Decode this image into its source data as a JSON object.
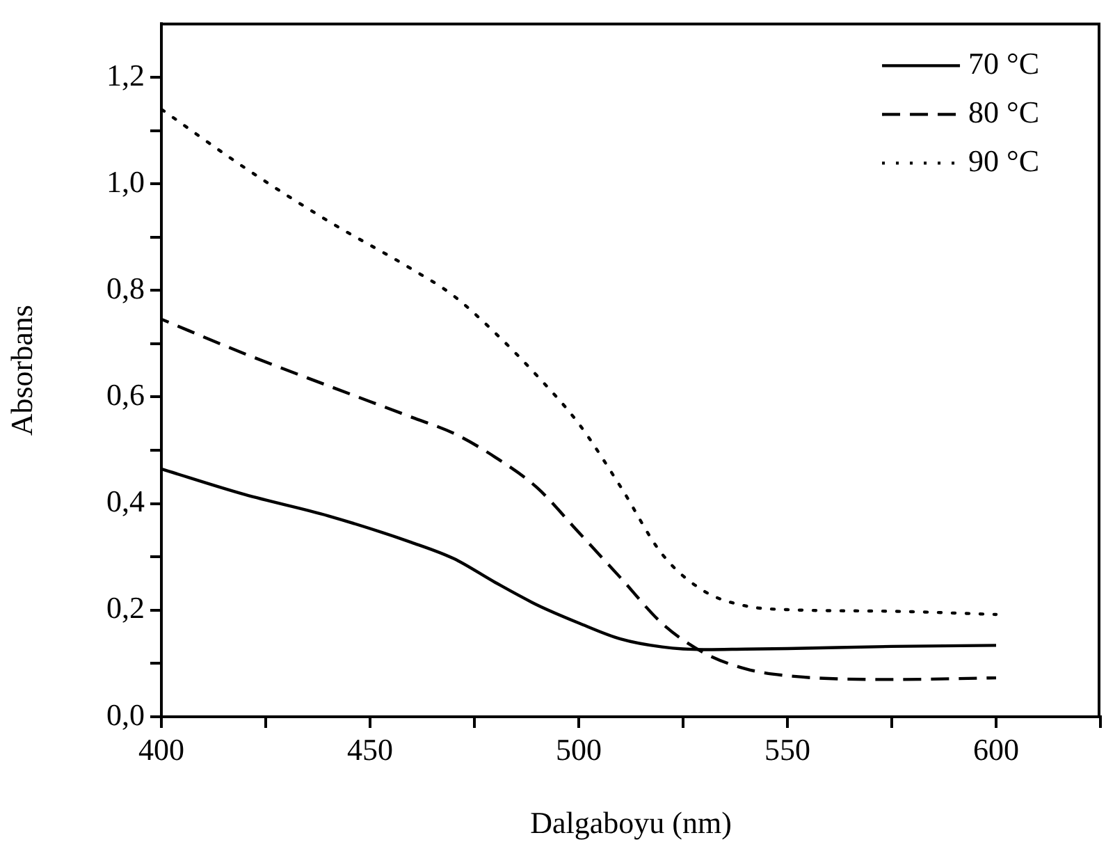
{
  "chart_data": {
    "type": "line",
    "xlabel": "Dalgaboyu (nm)",
    "ylabel": "Absorbans",
    "xlim": [
      400,
      625
    ],
    "xticks": [
      400,
      {
        "value": 425,
        "label": null
      },
      450,
      {
        "value": 475,
        "label": null
      },
      500,
      {
        "value": 525,
        "label": null
      },
      550,
      {
        "value": 575,
        "label": null
      },
      600,
      {
        "value": 625,
        "label": null
      }
    ],
    "ylim": [
      0,
      1.3
    ],
    "yticks": [
      {
        "value": 0,
        "label": "0,0"
      },
      {
        "value": 0.1,
        "label": null
      },
      {
        "value": 0.2,
        "label": "0,2"
      },
      {
        "value": 0.3,
        "label": null
      },
      {
        "value": 0.4,
        "label": "0,4"
      },
      {
        "value": 0.5,
        "label": null
      },
      {
        "value": 0.6,
        "label": "0,6"
      },
      {
        "value": 0.7,
        "label": null
      },
      {
        "value": 0.8,
        "label": "0,8"
      },
      {
        "value": 0.9,
        "label": null
      },
      {
        "value": 1.0,
        "label": "1,0"
      },
      {
        "value": 1.1,
        "label": null
      },
      {
        "value": 1.2,
        "label": "1,2"
      }
    ],
    "grid": false,
    "legend": "top right",
    "marker": "none",
    "x": [
      400,
      420,
      440,
      460,
      470,
      480,
      490,
      500,
      510,
      520,
      530,
      540,
      550,
      575,
      600
    ],
    "series": [
      {
        "name": "70 °C",
        "color": "#000000",
        "line_style": "solid",
        "values": [
          0.465,
          0.417,
          0.377,
          0.327,
          0.297,
          0.252,
          0.21,
          0.176,
          0.146,
          0.131,
          0.126,
          0.127,
          0.128,
          0.132,
          0.134
        ]
      },
      {
        "name": "80 °C",
        "color": "#000000",
        "line_style": "dashed",
        "values": [
          0.746,
          0.681,
          0.621,
          0.562,
          0.532,
          0.487,
          0.43,
          0.346,
          0.261,
          0.175,
          0.12,
          0.09,
          0.077,
          0.07,
          0.073
        ]
      },
      {
        "name": "90 °C",
        "color": "#000000",
        "line_style": "dotted",
        "values": [
          1.14,
          1.03,
          0.93,
          0.84,
          0.79,
          0.72,
          0.64,
          0.55,
          0.432,
          0.305,
          0.236,
          0.208,
          0.201,
          0.198,
          0.192
        ]
      }
    ]
  }
}
